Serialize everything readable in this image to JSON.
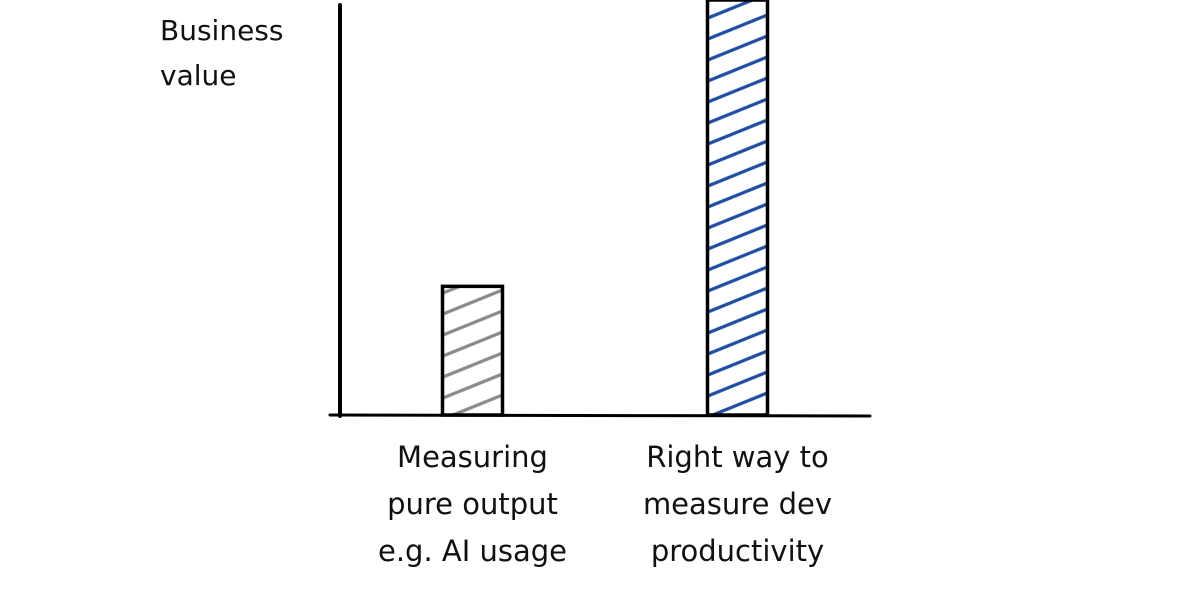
{
  "chart_data": {
    "type": "bar",
    "y_label": "Business\nvalue",
    "categories": [
      "Measuring\npure output\ne.g. AI usage",
      "Right way to\nmeasure dev\nproductivity"
    ],
    "values": [
      31,
      100
    ],
    "colors": [
      "#8a8a8a",
      "#1f4ea0"
    ],
    "ylim": [
      0,
      100
    ]
  }
}
